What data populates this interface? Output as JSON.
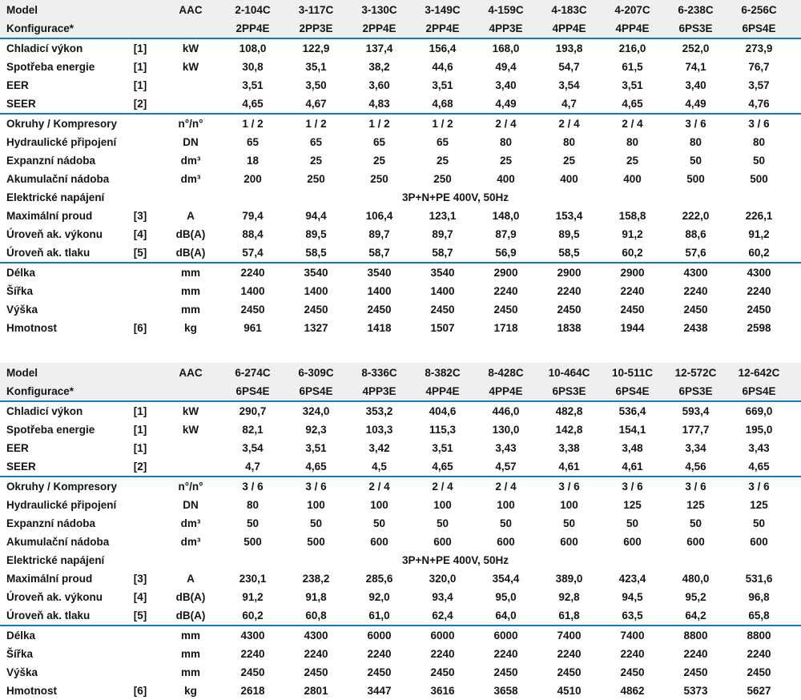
{
  "colors": {
    "accent_line": "#1878be",
    "header_bg": "#efefef",
    "text": "#141414"
  },
  "tables": [
    {
      "header": {
        "model_label": "Model",
        "config_label": "Konfigurace*",
        "unit_header": "AAC",
        "columns": [
          {
            "model": "2-104C",
            "config": "2PP4E"
          },
          {
            "model": "3-117C",
            "config": "2PP3E"
          },
          {
            "model": "3-130C",
            "config": "2PP4E"
          },
          {
            "model": "3-149C",
            "config": "2PP4E"
          },
          {
            "model": "4-159C",
            "config": "4PP3E"
          },
          {
            "model": "4-183C",
            "config": "4PP4E"
          },
          {
            "model": "4-207C",
            "config": "4PP4E"
          },
          {
            "model": "6-238C",
            "config": "6PS3E"
          },
          {
            "model": "6-256C",
            "config": "6PS4E"
          }
        ]
      },
      "sections": [
        {
          "rows": [
            {
              "label": "Chladicí výkon",
              "note": "[1]",
              "unit": "kW",
              "values": [
                "108,0",
                "122,9",
                "137,4",
                "156,4",
                "168,0",
                "193,8",
                "216,0",
                "252,0",
                "273,9"
              ]
            },
            {
              "label": "Spotřeba energie",
              "note": "[1]",
              "unit": "kW",
              "values": [
                "30,8",
                "35,1",
                "38,2",
                "44,6",
                "49,4",
                "54,7",
                "61,5",
                "74,1",
                "76,7"
              ]
            },
            {
              "label": "EER",
              "note": "[1]",
              "unit": "",
              "values": [
                "3,51",
                "3,50",
                "3,60",
                "3,51",
                "3,40",
                "3,54",
                "3,51",
                "3,40",
                "3,57"
              ]
            },
            {
              "label": "SEER",
              "note": "[2]",
              "unit": "",
              "values": [
                "4,65",
                "4,67",
                "4,83",
                "4,68",
                "4,49",
                "4,7",
                "4,65",
                "4,49",
                "4,76"
              ]
            }
          ]
        },
        {
          "rows": [
            {
              "label": "Okruhy / Kompresory",
              "note": "",
              "unit": "n°/n°",
              "values": [
                "1 / 2",
                "1 / 2",
                "1 / 2",
                "1 / 2",
                "2 / 4",
                "2 / 4",
                "2 / 4",
                "3 / 6",
                "3 / 6"
              ]
            },
            {
              "label": "Hydraulické připojení",
              "note": "",
              "unit": "DN",
              "values": [
                "65",
                "65",
                "65",
                "65",
                "80",
                "80",
                "80",
                "80",
                "80"
              ]
            },
            {
              "label": "Expanzní nádoba",
              "note": "",
              "unit": "dm³",
              "values": [
                "18",
                "25",
                "25",
                "25",
                "25",
                "25",
                "25",
                "50",
                "50"
              ]
            },
            {
              "label": "Akumulační nádoba",
              "note": "",
              "unit": "dm³",
              "values": [
                "200",
                "250",
                "250",
                "250",
                "400",
                "400",
                "400",
                "500",
                "500"
              ]
            },
            {
              "label": "Elektrické napájení",
              "note": "",
              "unit": "",
              "span_value": "3P+N+PE 400V, 50Hz"
            },
            {
              "label": "Maximální proud",
              "note": "[3]",
              "unit": "A",
              "values": [
                "79,4",
                "94,4",
                "106,4",
                "123,1",
                "148,0",
                "153,4",
                "158,8",
                "222,0",
                "226,1"
              ]
            },
            {
              "label": "Úroveň ak. výkonu",
              "note": "[4]",
              "unit": "dB(A)",
              "values": [
                "88,4",
                "89,5",
                "89,7",
                "89,7",
                "87,9",
                "89,5",
                "91,2",
                "88,6",
                "91,2"
              ]
            },
            {
              "label": "Úroveň ak. tlaku",
              "note": "[5]",
              "unit": "dB(A)",
              "values": [
                "57,4",
                "58,5",
                "58,7",
                "58,7",
                "56,9",
                "58,5",
                "60,2",
                "57,6",
                "60,2"
              ]
            }
          ]
        },
        {
          "rows": [
            {
              "label": "Délka",
              "note": "",
              "unit": "mm",
              "values": [
                "2240",
                "3540",
                "3540",
                "3540",
                "2900",
                "2900",
                "2900",
                "4300",
                "4300"
              ]
            },
            {
              "label": "Šířka",
              "note": "",
              "unit": "mm",
              "values": [
                "1400",
                "1400",
                "1400",
                "1400",
                "2240",
                "2240",
                "2240",
                "2240",
                "2240"
              ]
            },
            {
              "label": "Výška",
              "note": "",
              "unit": "mm",
              "values": [
                "2450",
                "2450",
                "2450",
                "2450",
                "2450",
                "2450",
                "2450",
                "2450",
                "2450"
              ]
            },
            {
              "label": "Hmotnost",
              "note": "[6]",
              "unit": "kg",
              "values": [
                "961",
                "1327",
                "1418",
                "1507",
                "1718",
                "1838",
                "1944",
                "2438",
                "2598"
              ]
            }
          ]
        }
      ]
    },
    {
      "header": {
        "model_label": "Model",
        "config_label": "Konfigurace*",
        "unit_header": "AAC",
        "columns": [
          {
            "model": "6-274C",
            "config": "6PS4E"
          },
          {
            "model": "6-309C",
            "config": "6PS4E"
          },
          {
            "model": "8-336C",
            "config": "4PP3E"
          },
          {
            "model": "8-382C",
            "config": "4PP4E"
          },
          {
            "model": "8-428C",
            "config": "4PP4E"
          },
          {
            "model": "10-464C",
            "config": "6PS3E"
          },
          {
            "model": "10-511C",
            "config": "6PS4E"
          },
          {
            "model": "12-572C",
            "config": "6PS3E"
          },
          {
            "model": "12-642C",
            "config": "6PS4E"
          }
        ]
      },
      "sections": [
        {
          "rows": [
            {
              "label": "Chladicí výkon",
              "note": "[1]",
              "unit": "kW",
              "values": [
                "290,7",
                "324,0",
                "353,2",
                "404,6",
                "446,0",
                "482,8",
                "536,4",
                "593,4",
                "669,0"
              ]
            },
            {
              "label": "Spotřeba energie",
              "note": "[1]",
              "unit": "kW",
              "values": [
                "82,1",
                "92,3",
                "103,3",
                "115,3",
                "130,0",
                "142,8",
                "154,1",
                "177,7",
                "195,0"
              ]
            },
            {
              "label": "EER",
              "note": "[1]",
              "unit": "",
              "values": [
                "3,54",
                "3,51",
                "3,42",
                "3,51",
                "3,43",
                "3,38",
                "3,48",
                "3,34",
                "3,43"
              ]
            },
            {
              "label": "SEER",
              "note": "[2]",
              "unit": "",
              "values": [
                "4,7",
                "4,65",
                "4,5",
                "4,65",
                "4,57",
                "4,61",
                "4,61",
                "4,56",
                "4,65"
              ]
            }
          ]
        },
        {
          "rows": [
            {
              "label": "Okruhy / Kompresory",
              "note": "",
              "unit": "n°/n°",
              "values": [
                "3 / 6",
                "3 / 6",
                "2 / 4",
                "2 / 4",
                "2 / 4",
                "3 / 6",
                "3 / 6",
                "3 / 6",
                "3 / 6"
              ]
            },
            {
              "label": "Hydraulické připojení",
              "note": "",
              "unit": "DN",
              "values": [
                "80",
                "100",
                "100",
                "100",
                "100",
                "100",
                "125",
                "125",
                "125"
              ]
            },
            {
              "label": "Expanzní nádoba",
              "note": "",
              "unit": "dm³",
              "values": [
                "50",
                "50",
                "50",
                "50",
                "50",
                "50",
                "50",
                "50",
                "50"
              ]
            },
            {
              "label": "Akumulační nádoba",
              "note": "",
              "unit": "dm³",
              "values": [
                "500",
                "500",
                "600",
                "600",
                "600",
                "600",
                "600",
                "600",
                "600"
              ]
            },
            {
              "label": "Elektrické napájení",
              "note": "",
              "unit": "",
              "span_value": "3P+N+PE 400V, 50Hz"
            },
            {
              "label": "Maximální proud",
              "note": "[3]",
              "unit": "A",
              "values": [
                "230,1",
                "238,2",
                "285,6",
                "320,0",
                "354,4",
                "389,0",
                "423,4",
                "480,0",
                "531,6"
              ]
            },
            {
              "label": "Úroveň ak. výkonu",
              "note": "[4]",
              "unit": "dB(A)",
              "values": [
                "91,2",
                "91,8",
                "92,0",
                "93,4",
                "95,0",
                "92,8",
                "94,5",
                "95,2",
                "96,8"
              ]
            },
            {
              "label": "Úroveň ak. tlaku",
              "note": "[5]",
              "unit": "dB(A)",
              "values": [
                "60,2",
                "60,8",
                "61,0",
                "62,4",
                "64,0",
                "61,8",
                "63,5",
                "64,2",
                "65,8"
              ]
            }
          ]
        },
        {
          "rows": [
            {
              "label": "Délka",
              "note": "",
              "unit": "mm",
              "values": [
                "4300",
                "4300",
                "6000",
                "6000",
                "6000",
                "7400",
                "7400",
                "8800",
                "8800"
              ]
            },
            {
              "label": "Šířka",
              "note": "",
              "unit": "mm",
              "values": [
                "2240",
                "2240",
                "2240",
                "2240",
                "2240",
                "2240",
                "2240",
                "2240",
                "2240"
              ]
            },
            {
              "label": "Výška",
              "note": "",
              "unit": "mm",
              "values": [
                "2450",
                "2450",
                "2450",
                "2450",
                "2450",
                "2450",
                "2450",
                "2450",
                "2450"
              ]
            },
            {
              "label": "Hmotnost",
              "note": "[6]",
              "unit": "kg",
              "values": [
                "2618",
                "2801",
                "3447",
                "3616",
                "3658",
                "4510",
                "4862",
                "5373",
                "5627"
              ]
            }
          ]
        }
      ]
    }
  ]
}
